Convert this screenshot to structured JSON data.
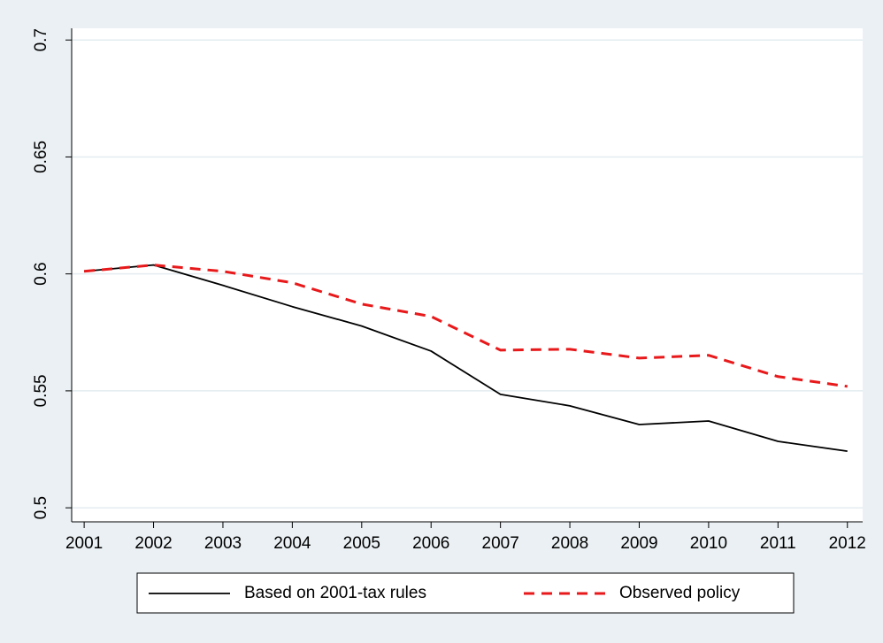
{
  "chart_data": {
    "type": "line",
    "x": [
      2001,
      2002,
      2003,
      2004,
      2005,
      2006,
      2007,
      2008,
      2009,
      2010,
      2011,
      2012
    ],
    "series": [
      {
        "name": "Based on 2001-tax rules",
        "color": "#000000",
        "dash": "solid",
        "values": [
          0.6011,
          0.6038,
          0.5951,
          0.586,
          0.5777,
          0.567,
          0.5485,
          0.5436,
          0.5356,
          0.5371,
          0.5284,
          0.5242
        ]
      },
      {
        "name": "Observed policy",
        "color": "#e8191b",
        "dash": "dashed",
        "values": [
          0.6011,
          0.6038,
          0.6011,
          0.5962,
          0.5871,
          0.5818,
          0.5674,
          0.5678,
          0.564,
          0.5652,
          0.5561,
          0.5519
        ]
      }
    ],
    "xlim": [
      2000.82,
      2012.22
    ],
    "xticks": [
      2001,
      2002,
      2003,
      2004,
      2005,
      2006,
      2007,
      2008,
      2009,
      2010,
      2011,
      2012
    ],
    "ylim": [
      0.494,
      0.705
    ],
    "yticks": [
      0.5,
      0.55,
      0.6,
      0.65,
      0.7
    ],
    "grid": true,
    "legend": "bottom"
  }
}
